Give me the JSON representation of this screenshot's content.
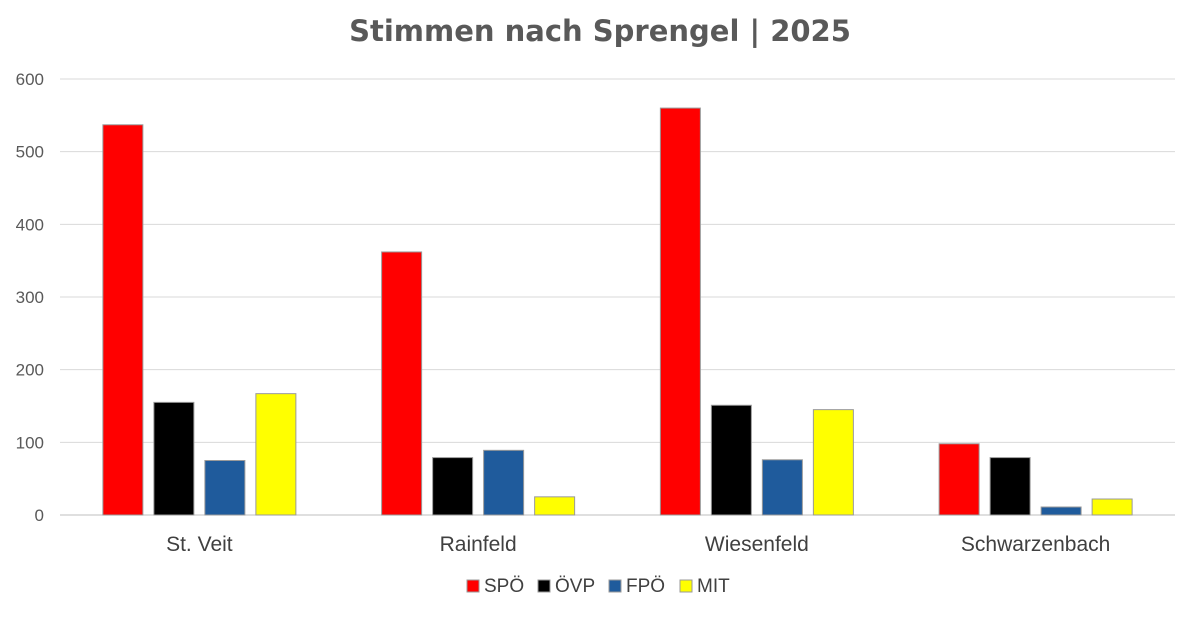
{
  "chart_data": {
    "type": "bar",
    "title": "Stimmen nach Sprengel | 2025",
    "categories": [
      "St. Veit",
      "Rainfeld",
      "Wiesenfeld",
      "Schwarzenbach"
    ],
    "series": [
      {
        "name": "SPÖ",
        "color": "#ff0000",
        "values": [
          537,
          362,
          560,
          98
        ]
      },
      {
        "name": "ÖVP",
        "color": "#000000",
        "values": [
          155,
          79,
          151,
          79
        ]
      },
      {
        "name": "FPÖ",
        "color": "#1f5b9c",
        "values": [
          75,
          89,
          76,
          11
        ]
      },
      {
        "name": "MIT",
        "color": "#ffff00",
        "values": [
          167,
          25,
          145,
          22
        ]
      }
    ],
    "ylim": [
      0,
      600
    ],
    "yticks": [
      0,
      100,
      200,
      300,
      400,
      500,
      600
    ],
    "grid": true,
    "legend": "bottom"
  }
}
